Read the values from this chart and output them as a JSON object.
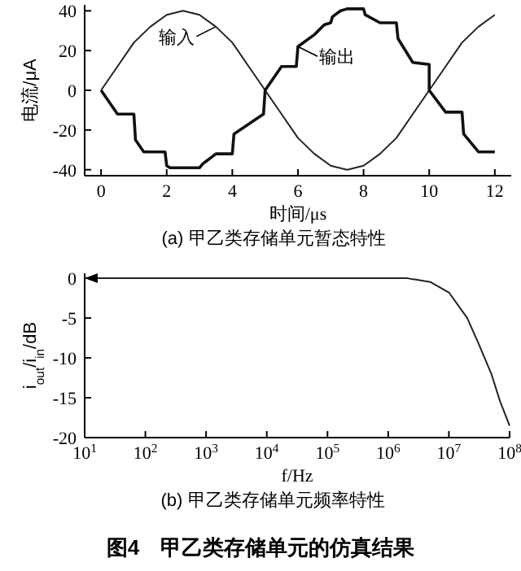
{
  "chart_data": [
    {
      "type": "line",
      "title": "(a) 甲乙类存储单元暂态特性",
      "xlabel": "时间/μs",
      "ylabel": "电流/μA",
      "series": [
        {
          "name": "输入",
          "color": "#222222",
          "x": [
            0,
            0.5,
            1,
            1.5,
            2,
            2.5,
            3,
            3.5,
            4,
            4.5,
            5,
            5.5,
            6,
            6.5,
            7,
            7.5,
            8,
            8.5,
            9,
            9.5,
            10,
            10.5,
            11,
            11.5,
            12
          ],
          "values": [
            0,
            12,
            24,
            32,
            38,
            40,
            38,
            32,
            24,
            12,
            0,
            -12,
            -24,
            -32,
            -38,
            -40,
            -38,
            -32,
            -24,
            -12,
            0,
            12,
            24,
            32,
            38
          ]
        },
        {
          "name": "输出",
          "color": "#111111",
          "x": [
            0,
            0.5,
            1,
            1.05,
            1.3,
            1.95,
            2,
            2.1,
            3,
            3.1,
            3.5,
            4,
            4.05,
            4.5,
            4.95,
            5,
            5.5,
            5.95,
            6,
            6.5,
            6.8,
            7,
            7.05,
            7.3,
            7.5,
            8,
            8.05,
            8.5,
            9,
            9.05,
            9.5,
            10,
            10,
            10.5,
            11,
            11.05,
            11.5,
            12
          ],
          "values": [
            0,
            -12,
            -12,
            -25,
            -31,
            -31,
            -38,
            -39,
            -39,
            -37,
            -32,
            -32,
            -22,
            -17,
            -12,
            0,
            12,
            12,
            22,
            28,
            33,
            34,
            37,
            40,
            41,
            41,
            38,
            34,
            34,
            26,
            14,
            13,
            0,
            -11,
            -11,
            -22,
            -31,
            -31
          ]
        }
      ],
      "xlim": [
        -0.5,
        12.5
      ],
      "ylim": [
        -43,
        43
      ],
      "xticks": [
        0,
        2,
        4,
        6,
        8,
        10,
        12
      ],
      "yticks": [
        -40,
        -20,
        0,
        20,
        40
      ],
      "grid": false,
      "marker": "none",
      "line_style": "solid"
    },
    {
      "type": "line",
      "title": "(b) 甲乙类存储单元频率特性",
      "xlabel": "f/Hz",
      "ylabel": "i$_{out}$/i$_{in}$/dB",
      "series": [
        {
          "color": "#222222",
          "x": [
            10,
            100,
            1000,
            10000,
            100000,
            1000000,
            2000000,
            5000000,
            10000000,
            20000000,
            30000000,
            50000000,
            70000000,
            100000000
          ],
          "values": [
            0,
            0,
            0,
            0,
            0,
            0,
            0,
            -0.5,
            -1.8,
            -5,
            -8,
            -12,
            -15.5,
            -18.5
          ]
        }
      ],
      "log": "x",
      "xlim": [
        10,
        100000000
      ],
      "ylim": [
        -20,
        0.6
      ],
      "xticks": [
        {
          "value": 10,
          "label": "10$^{1}$"
        },
        {
          "value": 100,
          "label": "10$^{2}$"
        },
        {
          "value": 1000,
          "label": "10$^{3}$"
        },
        {
          "value": 10000,
          "label": "10$^{4}$"
        },
        {
          "value": 100000,
          "label": "10$^{5}$"
        },
        {
          "value": 1000000,
          "label": "10$^{6}$"
        },
        {
          "value": 10000000,
          "label": "10$^{7}$"
        },
        {
          "value": 100000000,
          "label": "10$^{8}$"
        }
      ],
      "yticks": [
        0,
        -5,
        -10,
        -15,
        -20
      ],
      "grid": false,
      "marker": "none",
      "line_style": "solid",
      "annotations": [
        "图4　甲乙类存储单元的仿真结果"
      ]
    }
  ]
}
